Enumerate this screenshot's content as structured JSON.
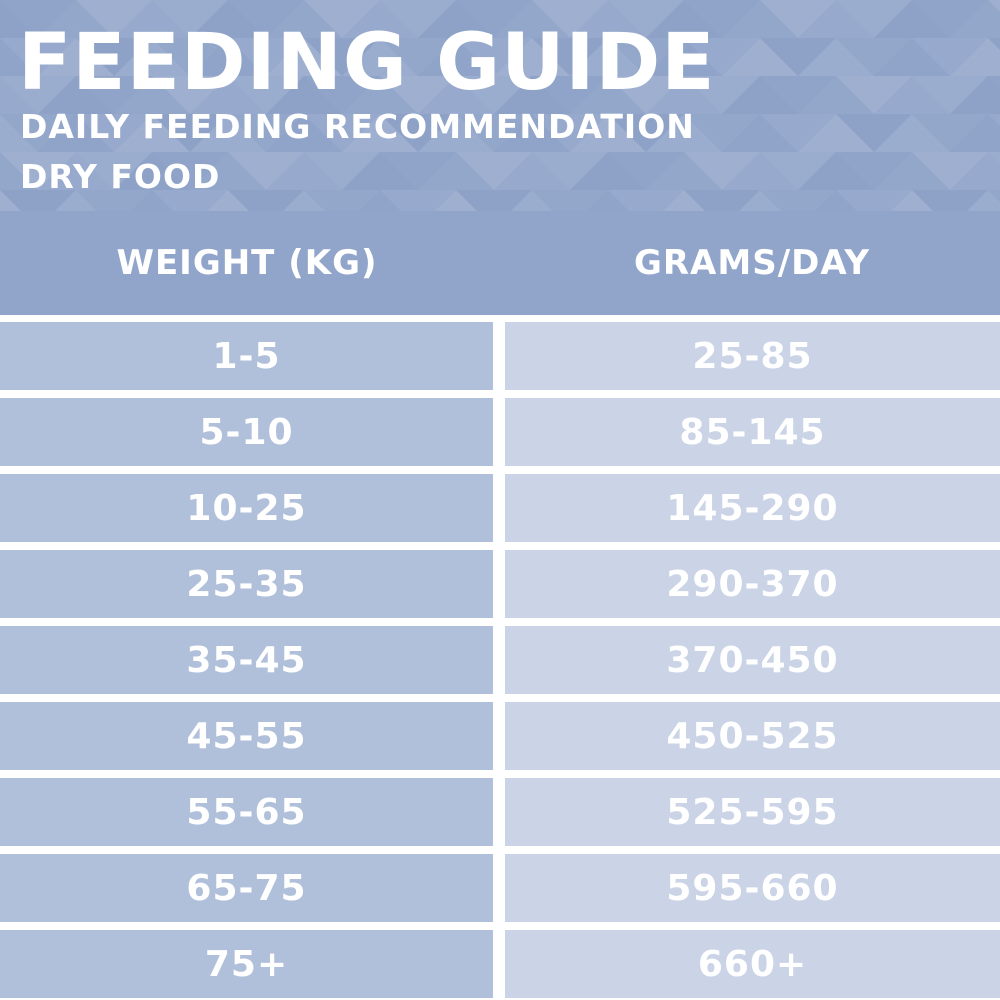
{
  "banner": {
    "title": "FEEDING GUIDE",
    "subtitle_line1": "DAILY FEEDING RECOMMENDATION",
    "subtitle_line2": "DRY FOOD"
  },
  "table": {
    "headers": [
      "WEIGHT (KG)",
      "GRAMS/DAY"
    ],
    "rows": [
      [
        "1-5",
        "25-85"
      ],
      [
        "5-10",
        "85-145"
      ],
      [
        "10-25",
        "145-290"
      ],
      [
        "25-35",
        "290-370"
      ],
      [
        "35-45",
        "370-450"
      ],
      [
        "45-55",
        "450-525"
      ],
      [
        "55-65",
        "525-595"
      ],
      [
        "65-75",
        "595-660"
      ],
      [
        "75+",
        "660+"
      ]
    ]
  },
  "colors": {
    "banner_bg": "#93a6cb",
    "header_bg": "#91a5ca",
    "left_cell_bg": "#b1c0da",
    "right_cell_bg": "#cad4e6",
    "text": "#ffffff"
  }
}
